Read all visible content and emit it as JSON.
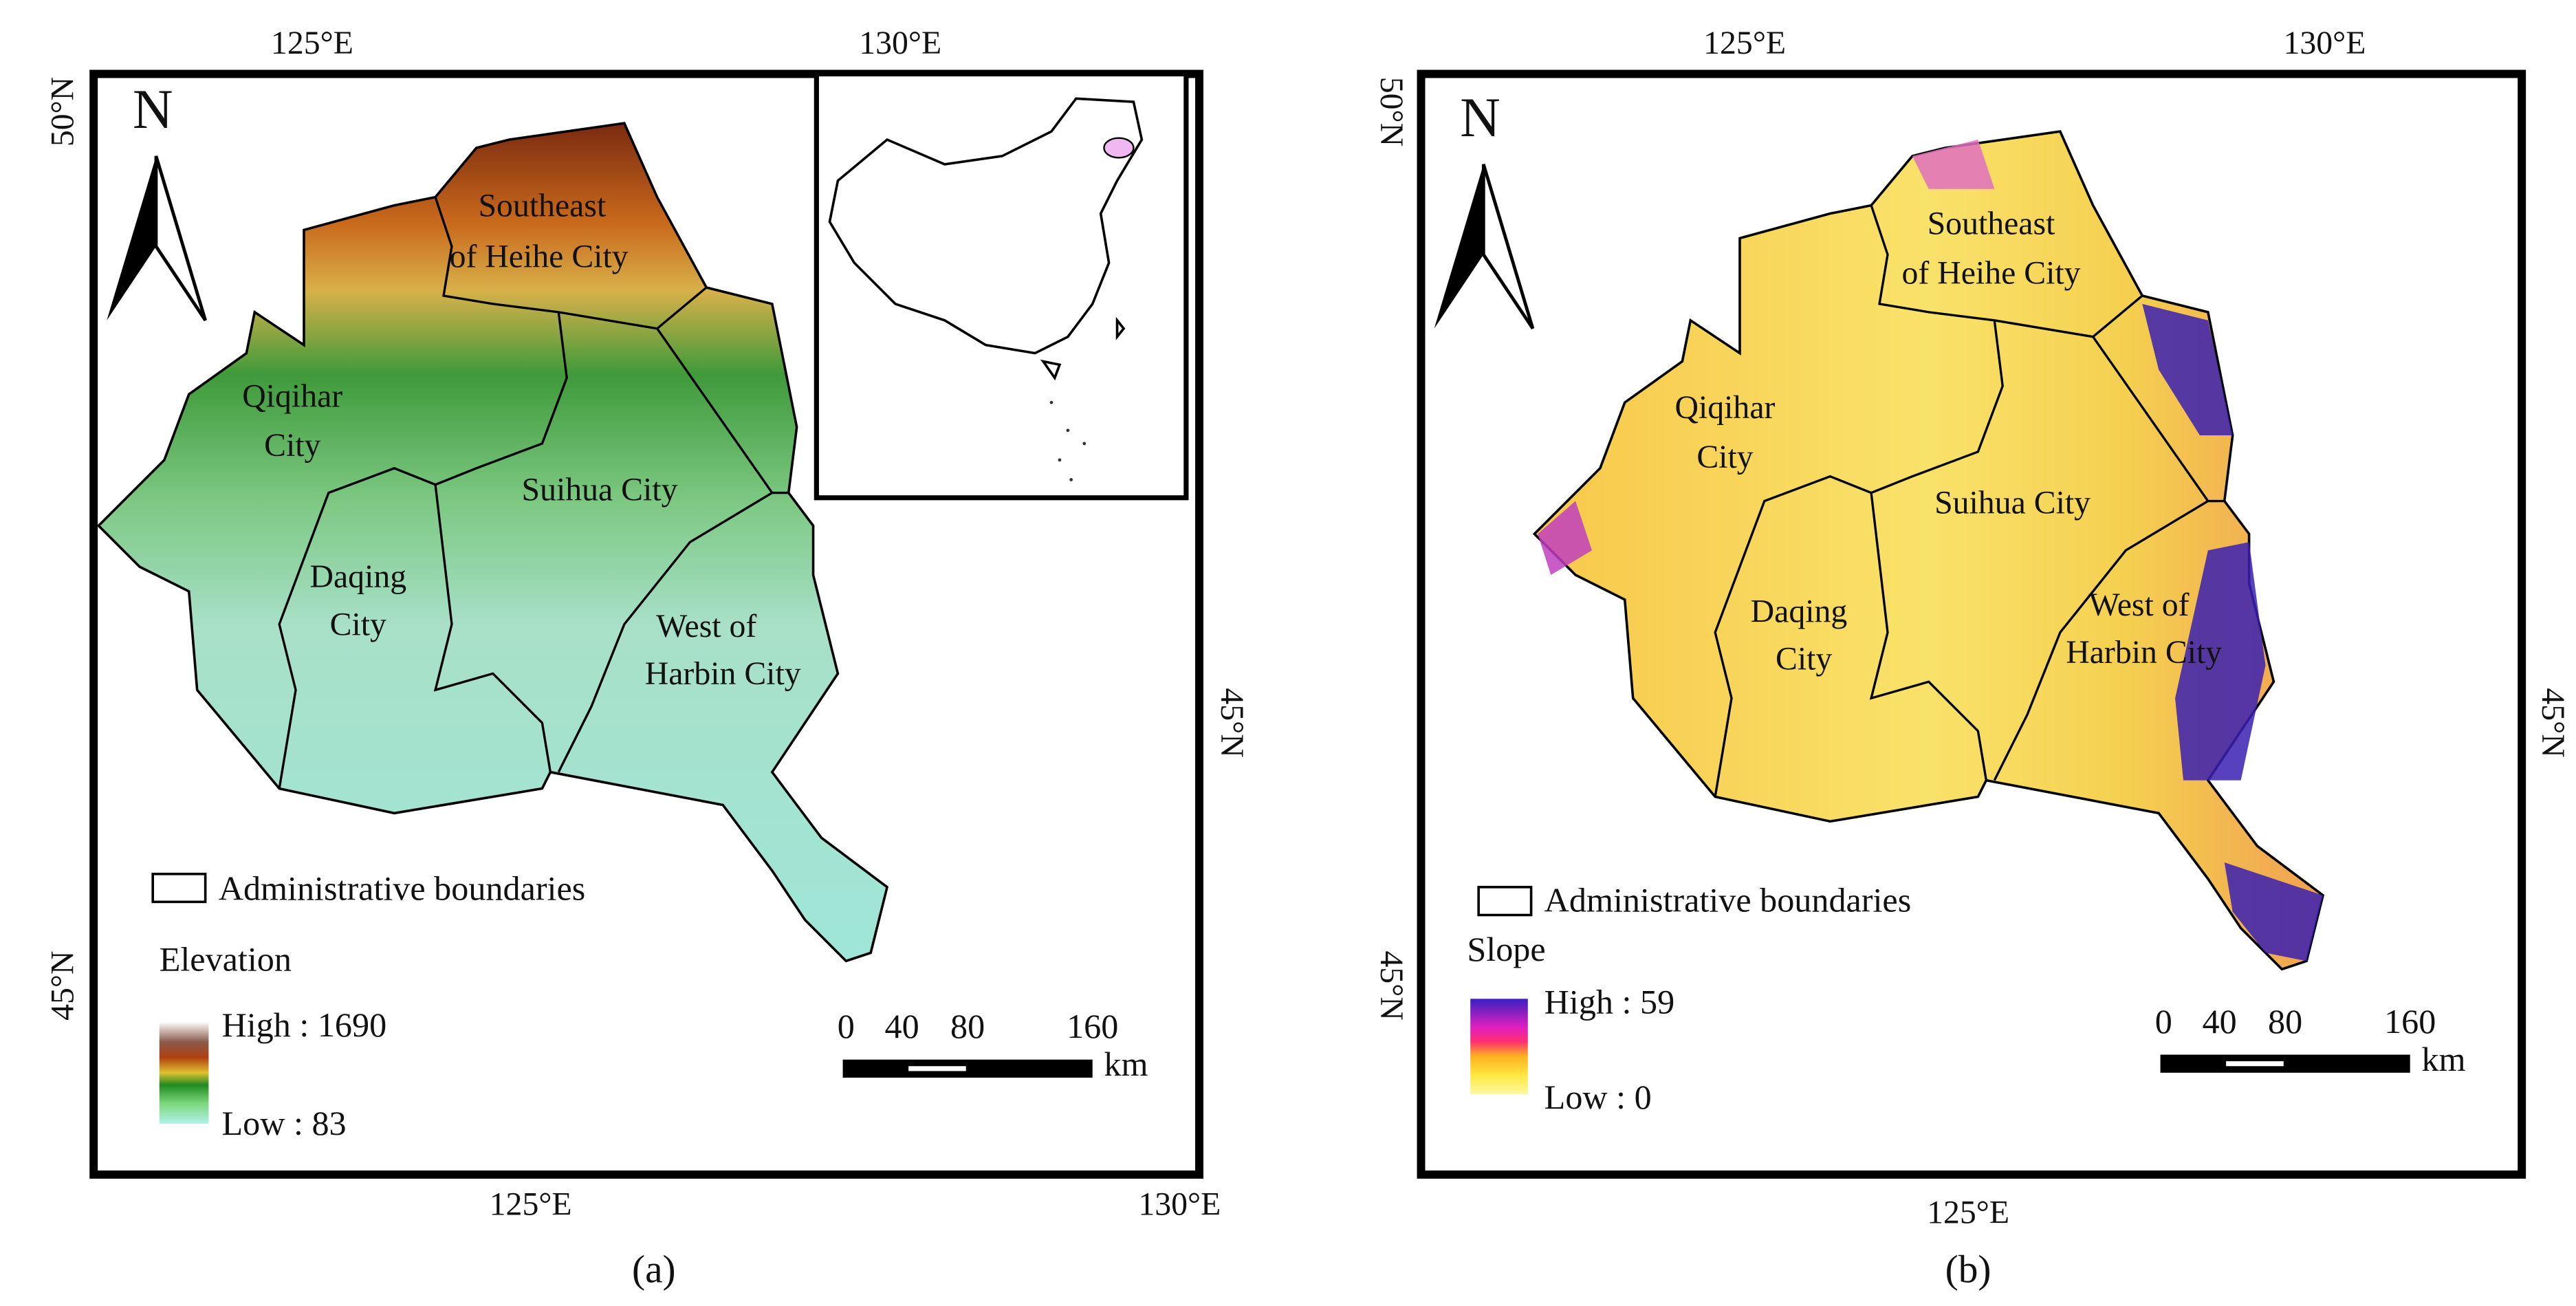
{
  "panels": [
    {
      "caption": "(a)",
      "top_lon": [
        "125°E",
        "130°E"
      ],
      "bottom_lon": [
        "125°E",
        "130°E"
      ],
      "left_lat": [
        "50°N",
        "45°N"
      ],
      "right_lat": [
        "45°N"
      ],
      "north": "N",
      "regions": [
        {
          "lines": [
            "Southeast",
            "of Heihe City"
          ]
        },
        {
          "lines": [
            "Qiqihar",
            "City"
          ]
        },
        {
          "lines": [
            "Suihua City"
          ]
        },
        {
          "lines": [
            "Daqing",
            "City"
          ]
        },
        {
          "lines": [
            "West of",
            "Harbin City"
          ]
        }
      ],
      "legend": {
        "boundary": "Administrative boundaries",
        "title": "Elevation",
        "high": "High : 1690",
        "low": "Low : 83"
      },
      "scale": {
        "ticks": [
          "0",
          "40",
          "80",
          "160"
        ],
        "unit": "km"
      }
    },
    {
      "caption": "(b)",
      "top_lon": [
        "125°E",
        "130°E"
      ],
      "bottom_lon": [
        "125°E"
      ],
      "left_lat": [
        "50°N",
        "45°N"
      ],
      "right_lat": [
        "45°N"
      ],
      "north": "N",
      "regions": [
        {
          "lines": [
            "Southeast",
            "of Heihe City"
          ]
        },
        {
          "lines": [
            "Qiqihar",
            "City"
          ]
        },
        {
          "lines": [
            "Suihua City"
          ]
        },
        {
          "lines": [
            "Daqing",
            "City"
          ]
        },
        {
          "lines": [
            "West of",
            "Harbin City"
          ]
        }
      ],
      "legend": {
        "boundary": "Administrative boundaries",
        "title": "Slope",
        "high": "High : 59",
        "low": "Low : 0"
      },
      "scale": {
        "ticks": [
          "0",
          "40",
          "80",
          "160"
        ],
        "unit": "km"
      }
    }
  ]
}
